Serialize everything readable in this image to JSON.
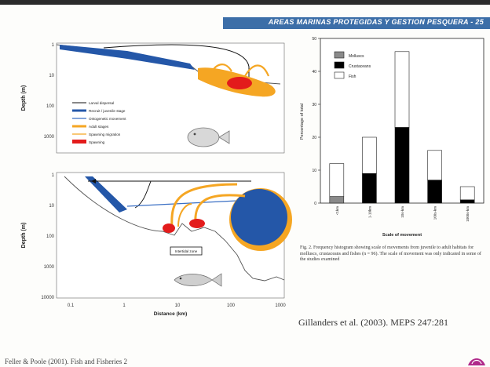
{
  "banner": {
    "text": "AREAS MARINAS PROTEGIDAS Y GESTION PESQUERA - 25"
  },
  "figure_left": {
    "ylabel": "Depth (m)",
    "xlabel": "Distance (km)",
    "y_ticks": [
      "1",
      "10",
      "100",
      "1000",
      "10000"
    ],
    "x_ticks": [
      "0.1",
      "1",
      "10",
      "100",
      "1000"
    ],
    "legend": [
      "Larval dispersal",
      "Recruit / juvenile stage",
      "Ontogenetic movement",
      "Adult stages",
      "Spawning migration",
      "Spawning"
    ],
    "box_label": "Intertidal zone",
    "colors": {
      "adult": "#f5a623",
      "spawning": "#e31b1b",
      "juvenile": "#2457a8"
    }
  },
  "chart_data": {
    "type": "bar",
    "stacked": true,
    "categories": [
      "<1km",
      "1-10km",
      "10s-km",
      "100s-km",
      "1000s-km"
    ],
    "series": [
      {
        "name": "Molluscs",
        "values": [
          2,
          0,
          0,
          0,
          0
        ],
        "color": "#8a8a8a"
      },
      {
        "name": "Crustaceans",
        "values": [
          0,
          9,
          23,
          7,
          1
        ],
        "color": "#000000"
      },
      {
        "name": "Fish",
        "values": [
          10,
          11,
          23,
          9,
          4
        ],
        "color": "#ffffff"
      }
    ],
    "ylabel": "Percentage of total",
    "xlabel": "Scale of movement",
    "ylim": [
      0,
      50
    ],
    "y_ticks": [
      "0",
      "10",
      "20",
      "30",
      "40",
      "50"
    ],
    "legend_position": "top-left"
  },
  "caption": "Fig. 2. Frequency histogram showing scale of movements from juvenile to adult habitats for molluscs, crustaceans and fishes (n = 96). The scale of movement was only indicated in some of the studies examined",
  "citation": "Gillanders et al. (2003). MEPS 247:281",
  "footer_ref": "Feller & Poole (2001). Fish and Fisheries 2"
}
